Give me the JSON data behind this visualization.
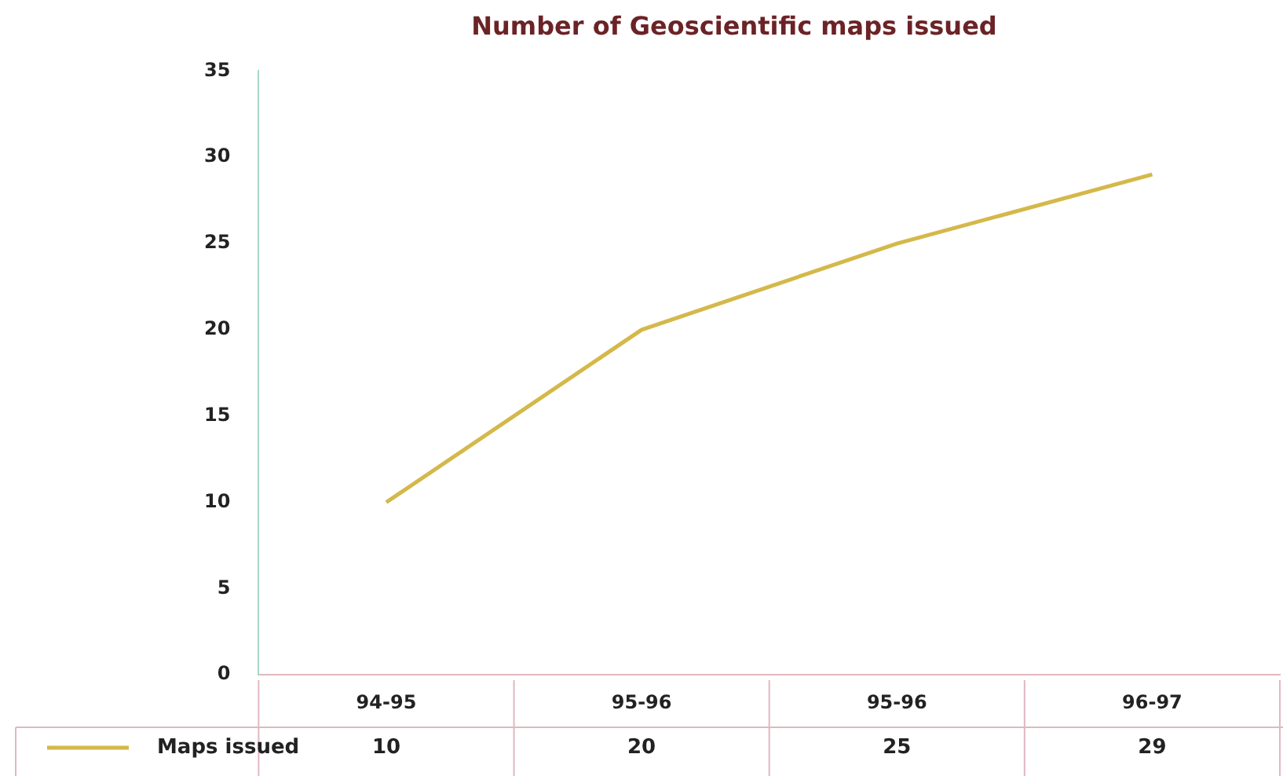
{
  "chart_data": {
    "type": "line",
    "title": "Number of Geoscientific maps issued",
    "categories": [
      "94-95",
      "95-96",
      "95-96",
      "96-97"
    ],
    "series": [
      {
        "name": "Maps issued",
        "color": "#d4b84a",
        "values": [
          10,
          20,
          25,
          29
        ]
      }
    ],
    "ylim": [
      0,
      35
    ],
    "yticks": [
      0,
      5,
      10,
      15,
      20,
      25,
      30,
      35
    ],
    "data_labels": true,
    "legend": "bottom",
    "marker": "none",
    "line_style": "solid"
  }
}
